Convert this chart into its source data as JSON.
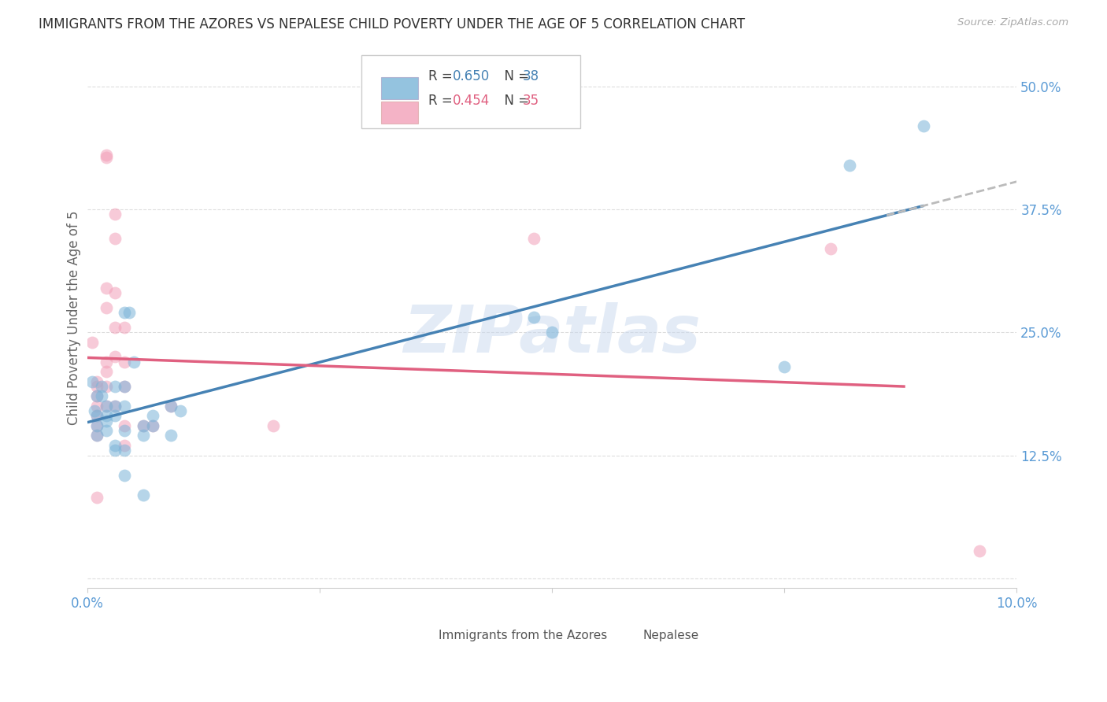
{
  "title": "IMMIGRANTS FROM THE AZORES VS NEPALESE CHILD POVERTY UNDER THE AGE OF 5 CORRELATION CHART",
  "source": "Source: ZipAtlas.com",
  "ylabel": "Child Poverty Under the Age of 5",
  "ytick_vals": [
    0.0,
    0.125,
    0.25,
    0.375,
    0.5
  ],
  "ytick_labels": [
    "",
    "12.5%",
    "25.0%",
    "37.5%",
    "50.0%"
  ],
  "xlim": [
    0.0,
    0.1
  ],
  "ylim": [
    -0.01,
    0.54
  ],
  "legend_r_blue": "R = 0.650",
  "legend_n_blue": "N = 38",
  "legend_r_pink": "R = 0.454",
  "legend_n_pink": "N = 35",
  "watermark": "ZIPatlas",
  "blue_scatter": [
    [
      0.0005,
      0.2
    ],
    [
      0.0008,
      0.17
    ],
    [
      0.001,
      0.185
    ],
    [
      0.001,
      0.165
    ],
    [
      0.001,
      0.155
    ],
    [
      0.001,
      0.145
    ],
    [
      0.0015,
      0.195
    ],
    [
      0.0015,
      0.185
    ],
    [
      0.002,
      0.175
    ],
    [
      0.002,
      0.165
    ],
    [
      0.002,
      0.16
    ],
    [
      0.002,
      0.15
    ],
    [
      0.003,
      0.195
    ],
    [
      0.003,
      0.175
    ],
    [
      0.003,
      0.165
    ],
    [
      0.003,
      0.135
    ],
    [
      0.003,
      0.13
    ],
    [
      0.004,
      0.27
    ],
    [
      0.004,
      0.195
    ],
    [
      0.004,
      0.175
    ],
    [
      0.004,
      0.15
    ],
    [
      0.004,
      0.13
    ],
    [
      0.004,
      0.105
    ],
    [
      0.0045,
      0.27
    ],
    [
      0.005,
      0.22
    ],
    [
      0.006,
      0.155
    ],
    [
      0.006,
      0.145
    ],
    [
      0.006,
      0.085
    ],
    [
      0.007,
      0.165
    ],
    [
      0.007,
      0.155
    ],
    [
      0.009,
      0.175
    ],
    [
      0.009,
      0.145
    ],
    [
      0.01,
      0.17
    ],
    [
      0.048,
      0.265
    ],
    [
      0.05,
      0.25
    ],
    [
      0.075,
      0.215
    ],
    [
      0.082,
      0.42
    ],
    [
      0.09,
      0.46
    ]
  ],
  "pink_scatter": [
    [
      0.0005,
      0.24
    ],
    [
      0.001,
      0.2
    ],
    [
      0.001,
      0.195
    ],
    [
      0.001,
      0.185
    ],
    [
      0.001,
      0.175
    ],
    [
      0.001,
      0.165
    ],
    [
      0.001,
      0.155
    ],
    [
      0.001,
      0.145
    ],
    [
      0.001,
      0.082
    ],
    [
      0.002,
      0.43
    ],
    [
      0.002,
      0.428
    ],
    [
      0.002,
      0.295
    ],
    [
      0.002,
      0.275
    ],
    [
      0.002,
      0.22
    ],
    [
      0.002,
      0.21
    ],
    [
      0.002,
      0.195
    ],
    [
      0.002,
      0.175
    ],
    [
      0.003,
      0.37
    ],
    [
      0.003,
      0.345
    ],
    [
      0.003,
      0.29
    ],
    [
      0.003,
      0.255
    ],
    [
      0.003,
      0.225
    ],
    [
      0.003,
      0.175
    ],
    [
      0.004,
      0.255
    ],
    [
      0.004,
      0.22
    ],
    [
      0.004,
      0.195
    ],
    [
      0.004,
      0.155
    ],
    [
      0.004,
      0.135
    ],
    [
      0.006,
      0.155
    ],
    [
      0.007,
      0.155
    ],
    [
      0.009,
      0.175
    ],
    [
      0.02,
      0.155
    ],
    [
      0.048,
      0.345
    ],
    [
      0.08,
      0.335
    ],
    [
      0.096,
      0.028
    ]
  ],
  "blue_color": "#7ab4d8",
  "pink_color": "#f2a0b8",
  "blue_line_color": "#4682b4",
  "pink_line_color": "#e06080",
  "dash_color": "#bbbbbb",
  "background_color": "#ffffff",
  "grid_color": "#dddddd",
  "title_color": "#333333",
  "axis_tick_color": "#5b9bd5",
  "scatter_size": 130,
  "scatter_alpha": 0.55,
  "bottom_legend_labels": [
    "Immigrants from the Azores",
    "Nepalese"
  ]
}
